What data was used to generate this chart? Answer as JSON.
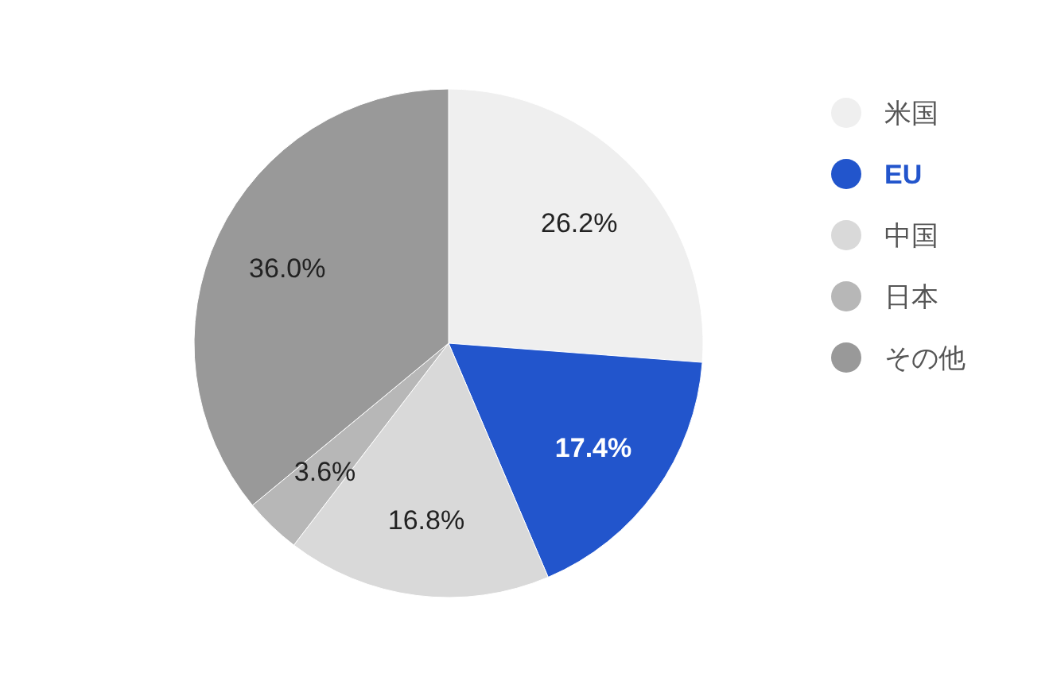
{
  "chart_data": {
    "type": "pie",
    "categories": [
      "米国",
      "EU",
      "中国",
      "日本",
      "その他"
    ],
    "values": [
      26.2,
      17.4,
      16.8,
      3.6,
      36.0
    ],
    "value_labels": [
      "26.2%",
      "17.4%",
      "16.8%",
      "3.6%",
      "36.0%"
    ],
    "colors": [
      "#efefef",
      "#2255cc",
      "#d9d9d9",
      "#b7b7b7",
      "#999999"
    ],
    "legend": "right"
  }
}
